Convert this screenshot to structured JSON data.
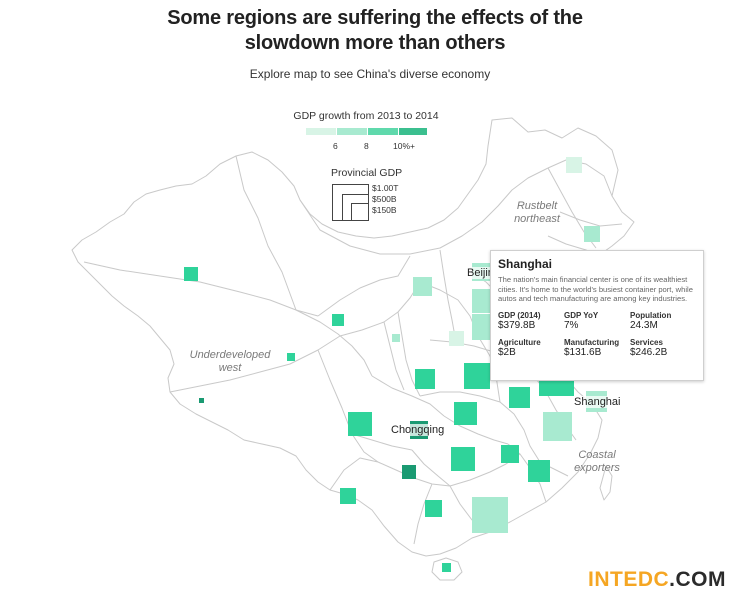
{
  "header": {
    "title_line1": "Some regions are suffering the effects of the",
    "title_line2": "slowdown more than others",
    "subtitle": "Explore map to see China's diverse economy"
  },
  "legend": {
    "growth_title": "GDP growth from 2013 to 2014",
    "growth_ticks": [
      "6",
      "8",
      "10%+"
    ],
    "growth_colors": [
      "#d8f4e6",
      "#a8ead0",
      "#5fd9ac",
      "#3bbf8f"
    ],
    "size_title": "Provincial GDP",
    "size_labels": [
      "$1.00T",
      "$500B",
      "$150B"
    ]
  },
  "regions": {
    "rustbelt": "Rustbelt\nnortheast",
    "west": "Underdeveloped\nwest",
    "coastal": "Coastal\nexporters"
  },
  "cities": {
    "beijing": "Beijing",
    "chongqing": "Chongqing",
    "shanghai": "Shanghai"
  },
  "tooltip": {
    "name": "Shanghai",
    "description": "The nation's main financial center is one of its wealthiest cities. It's home to the world's busiest container port, while autos and tech manufacturing are among key industries.",
    "stats": [
      {
        "label": "GDP (2014)",
        "value": "$379.8B"
      },
      {
        "label": "GDP YoY",
        "value": "7%"
      },
      {
        "label": "Population",
        "value": "24.3M"
      },
      {
        "label": "Agriculture",
        "value": "$2B"
      },
      {
        "label": "Manufacturing",
        "value": "$131.6B"
      },
      {
        "label": "Services",
        "value": "$246.2B"
      }
    ]
  },
  "colors": {
    "border": "#c9c9c9",
    "square_light": "#a8ead0",
    "square_mid": "#2fd39a",
    "square_dark": "#1a9a72"
  },
  "watermark": {
    "part1": "INTEDC",
    "part2": ".COM"
  }
}
